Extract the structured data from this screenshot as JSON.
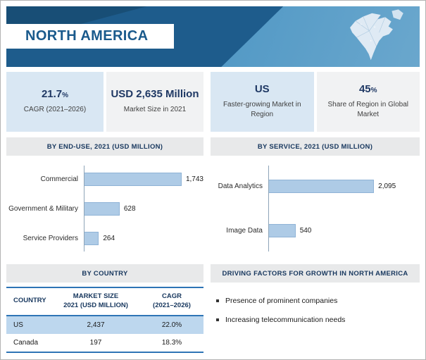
{
  "header": {
    "title": "NORTH AMERICA"
  },
  "stats": [
    {
      "value": "21.7",
      "suffix": "%",
      "label": "CAGR (2021–2026)"
    },
    {
      "value": "USD 2,635 Million",
      "suffix": "",
      "label": "Market Size in 2021"
    },
    {
      "value": "US",
      "suffix": "",
      "label": "Faster-growing Market in Region"
    },
    {
      "value": "45",
      "suffix": "%",
      "label": "Share of Region in Global Market"
    }
  ],
  "sections": {
    "driving_factors_title": "DRIVING FACTORS FOR GROWTH IN NORTH AMERICA"
  },
  "driving_factors": [
    "Presence of prominent companies",
    "Increasing telecommunication needs"
  ],
  "colors": {
    "banner_blue": "#1e5c8c",
    "accent_navy": "#1f3864",
    "bar_fill": "#aecbe6",
    "table_highlight": "#bdd7ee",
    "table_border_blue": "#2e75b6"
  },
  "chart_data": [
    {
      "type": "bar",
      "orientation": "horizontal",
      "title": "BY END-USE, 2021 (USD MILLION)",
      "categories": [
        "Commercial",
        "Government & Military",
        "Service Providers"
      ],
      "values": [
        1743,
        628,
        264
      ],
      "value_labels": [
        "1,743",
        "628",
        "264"
      ],
      "xlim": [
        0,
        2100
      ],
      "unit": "USD Million",
      "grid": false,
      "bar_color": "#aecbe6"
    },
    {
      "type": "bar",
      "orientation": "horizontal",
      "title": "BY SERVICE, 2021 (USD MILLION)",
      "categories": [
        "Data Analytics",
        "Image Data"
      ],
      "values": [
        2095,
        540
      ],
      "value_labels": [
        "2,095",
        "540"
      ],
      "xlim": [
        0,
        3000
      ],
      "unit": "USD Million",
      "grid": false,
      "bar_color": "#aecbe6"
    },
    {
      "type": "table",
      "title": "BY COUNTRY",
      "columns": [
        "COUNTRY",
        "MARKET SIZE\n2021 (USD MILLION)",
        "CAGR\n(2021–2026)"
      ],
      "rows": [
        [
          "US",
          "2,437",
          "22.0%"
        ],
        [
          "Canada",
          "197",
          "18.3%"
        ]
      ],
      "highlight_row": 0
    }
  ]
}
